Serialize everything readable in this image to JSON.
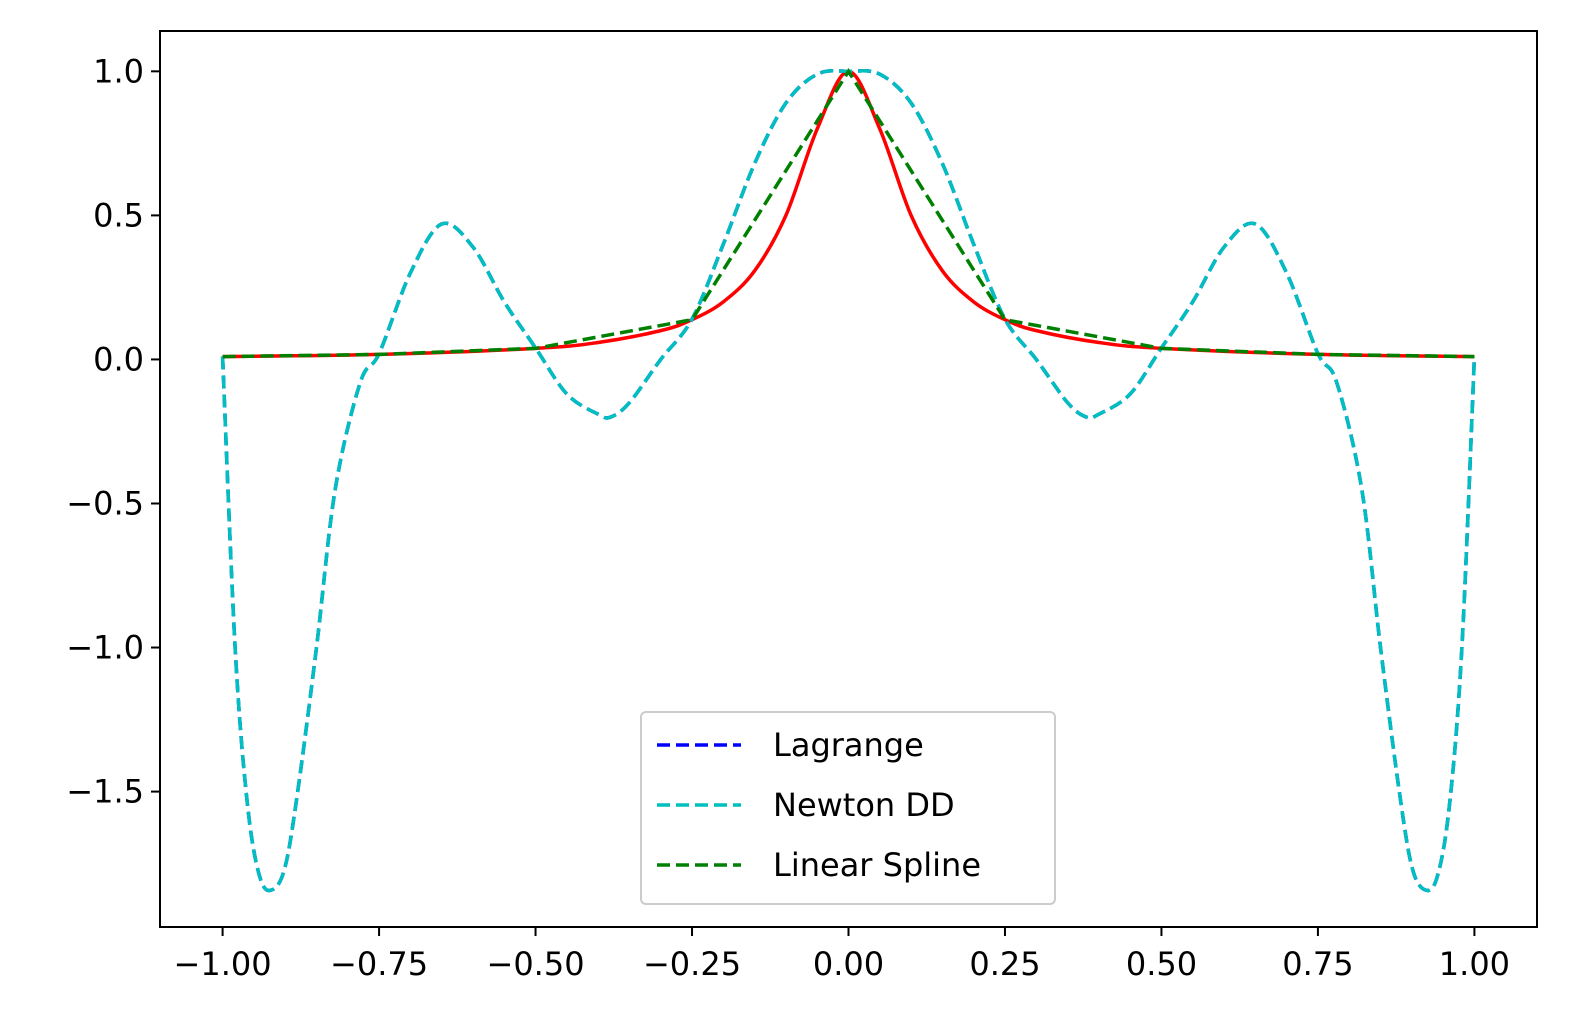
{
  "chart_data": {
    "type": "line",
    "title": "",
    "xlabel": "",
    "ylabel": "",
    "xlim": [
      -1.1,
      1.1
    ],
    "ylim": [
      -1.97,
      1.14
    ],
    "x_ticks": [
      -1.0,
      -0.75,
      -0.5,
      -0.25,
      0.0,
      0.25,
      0.5,
      0.75,
      1.0
    ],
    "x_tick_labels": [
      "−1.00",
      "−0.75",
      "−0.50",
      "−0.25",
      "0.00",
      "0.25",
      "0.50",
      "0.75",
      "1.00"
    ],
    "y_ticks": [
      1.0,
      0.5,
      0.0,
      -0.5,
      -1.0,
      -1.5
    ],
    "y_tick_labels": [
      "1.0",
      "0.5",
      "0.0",
      "−0.5",
      "−1.0",
      "−1.5"
    ],
    "grid": false,
    "legend_position": "lower center",
    "legend": [
      {
        "label": "Lagrange",
        "color": "#0000ff",
        "style": "dashed"
      },
      {
        "label": "Newton DD",
        "color": "#00bfbf",
        "style": "dashed"
      },
      {
        "label": "Linear Spline",
        "color": "#008000",
        "style": "dashed"
      }
    ],
    "series": [
      {
        "function_curve": true,
        "color": "#ff0000",
        "style": "solid",
        "x": [
          -1.0,
          -0.75,
          -0.5,
          -0.4,
          -0.3,
          -0.25,
          -0.2,
          -0.15,
          -0.1,
          -0.05,
          0.0,
          0.05,
          0.1,
          0.15,
          0.2,
          0.25,
          0.3,
          0.4,
          0.5,
          0.75,
          1.0
        ],
        "y": [
          0.0099,
          0.0175,
          0.0385,
          0.0588,
          0.1,
          0.1379,
          0.2,
          0.3077,
          0.5,
          0.8,
          1.0,
          0.8,
          0.5,
          0.3077,
          0.2,
          0.1379,
          0.1,
          0.0588,
          0.0385,
          0.0175,
          0.0099
        ]
      },
      {
        "name": "Lagrange",
        "color": "#0000ff",
        "style": "dashed",
        "x": [
          -1.0,
          -0.98,
          -0.96,
          -0.94,
          -0.92,
          -0.9,
          -0.88,
          -0.85,
          -0.82,
          -0.78,
          -0.75,
          -0.7,
          -0.65,
          -0.6,
          -0.55,
          -0.5,
          -0.45,
          -0.4,
          -0.38,
          -0.35,
          -0.3,
          -0.25,
          -0.2,
          -0.15,
          -0.1,
          -0.05,
          0.0,
          0.05,
          0.1,
          0.15,
          0.2,
          0.25,
          0.3,
          0.35,
          0.38,
          0.4,
          0.45,
          0.5,
          0.55,
          0.6,
          0.65,
          0.7,
          0.75,
          0.78,
          0.82,
          0.85,
          0.88,
          0.9,
          0.92,
          0.94,
          0.96,
          0.98,
          1.0
        ],
        "y": [
          0.01,
          -1.0,
          -1.55,
          -1.8,
          -1.84,
          -1.76,
          -1.5,
          -1.0,
          -0.45,
          -0.08,
          0.02,
          0.3,
          0.47,
          0.39,
          0.2,
          0.04,
          -0.12,
          -0.19,
          -0.2,
          -0.15,
          0.0,
          0.14,
          0.4,
          0.68,
          0.89,
          0.99,
          1.0,
          0.99,
          0.89,
          0.68,
          0.4,
          0.14,
          0.0,
          -0.15,
          -0.2,
          -0.19,
          -0.12,
          0.04,
          0.2,
          0.39,
          0.47,
          0.3,
          0.02,
          -0.08,
          -0.45,
          -1.0,
          -1.5,
          -1.76,
          -1.84,
          -1.8,
          -1.55,
          -1.0,
          0.01
        ]
      },
      {
        "name": "Newton DD",
        "color": "#00bfbf",
        "style": "dashed",
        "x": [
          -1.0,
          -0.98,
          -0.96,
          -0.94,
          -0.92,
          -0.9,
          -0.88,
          -0.85,
          -0.82,
          -0.78,
          -0.75,
          -0.7,
          -0.65,
          -0.6,
          -0.55,
          -0.5,
          -0.45,
          -0.4,
          -0.38,
          -0.35,
          -0.3,
          -0.25,
          -0.2,
          -0.15,
          -0.1,
          -0.05,
          0.0,
          0.05,
          0.1,
          0.15,
          0.2,
          0.25,
          0.3,
          0.35,
          0.38,
          0.4,
          0.45,
          0.5,
          0.55,
          0.6,
          0.65,
          0.7,
          0.75,
          0.78,
          0.82,
          0.85,
          0.88,
          0.9,
          0.92,
          0.94,
          0.96,
          0.98,
          1.0
        ],
        "y": [
          0.01,
          -1.0,
          -1.55,
          -1.8,
          -1.84,
          -1.76,
          -1.5,
          -1.0,
          -0.45,
          -0.08,
          0.02,
          0.3,
          0.47,
          0.39,
          0.2,
          0.04,
          -0.12,
          -0.19,
          -0.2,
          -0.15,
          0.0,
          0.14,
          0.4,
          0.68,
          0.89,
          0.99,
          1.0,
          0.99,
          0.89,
          0.68,
          0.4,
          0.14,
          0.0,
          -0.15,
          -0.2,
          -0.19,
          -0.12,
          0.04,
          0.2,
          0.39,
          0.47,
          0.3,
          0.02,
          -0.08,
          -0.45,
          -1.0,
          -1.5,
          -1.76,
          -1.84,
          -1.8,
          -1.55,
          -1.0,
          0.01
        ]
      },
      {
        "name": "Linear Spline",
        "color": "#008000",
        "style": "dashed",
        "x": [
          -1.0,
          -0.75,
          -0.5,
          -0.25,
          0.0,
          0.25,
          0.5,
          0.75,
          1.0
        ],
        "y": [
          0.0099,
          0.0175,
          0.0385,
          0.1379,
          1.0,
          0.1379,
          0.0385,
          0.0175,
          0.0099
        ]
      }
    ]
  }
}
